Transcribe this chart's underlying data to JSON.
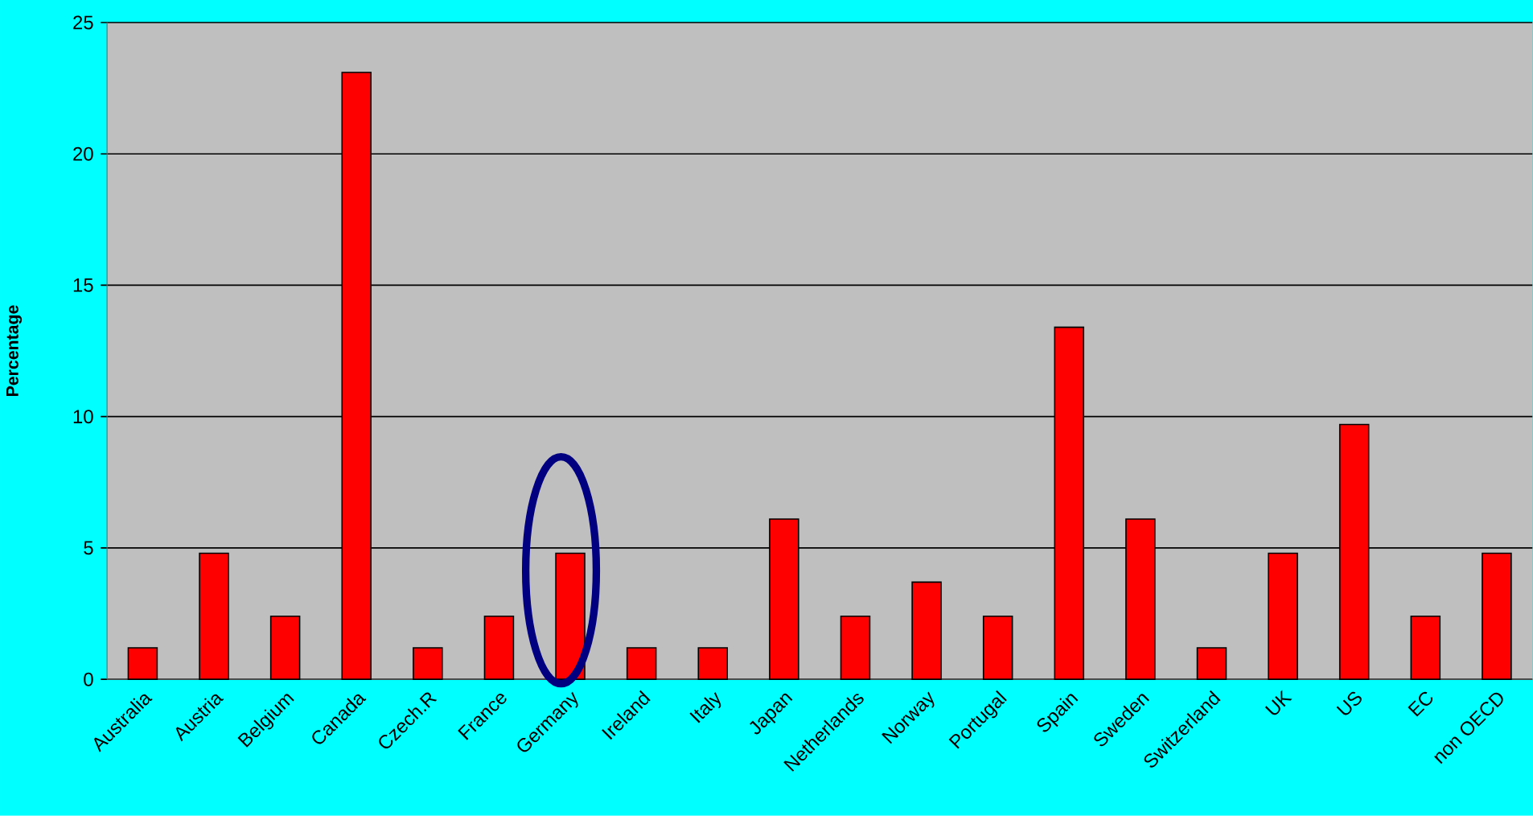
{
  "chart_data": {
    "type": "bar",
    "ylabel": "Percentage",
    "categories": [
      "Australia",
      "Austria",
      "Belgium",
      "Canada",
      "Czech.R",
      "France",
      "Germany",
      "Ireland",
      "Italy",
      "Japan",
      "Netherlands",
      "Norway",
      "Portugal",
      "Spain",
      "Sweden",
      "Switzerland",
      "UK",
      "US",
      "EC",
      "non OECD"
    ],
    "values": [
      1.2,
      4.8,
      2.4,
      23.1,
      1.2,
      2.4,
      4.8,
      1.2,
      1.2,
      6.1,
      2.4,
      3.7,
      2.4,
      13.4,
      6.1,
      1.2,
      4.8,
      9.7,
      2.4,
      4.8
    ],
    "color": "#ff0000",
    "ylim": [
      0,
      25
    ],
    "yticks": [
      0,
      5,
      10,
      15,
      20,
      25
    ],
    "grid": "y"
  }
}
